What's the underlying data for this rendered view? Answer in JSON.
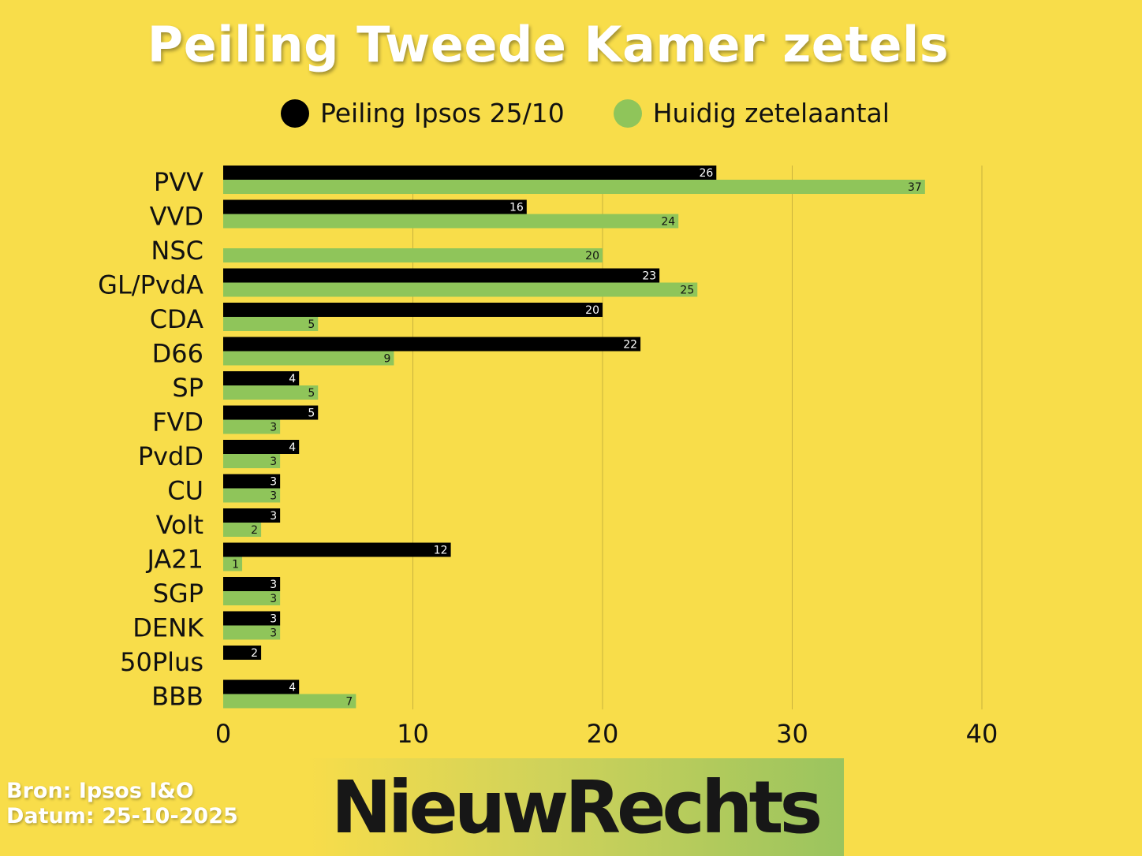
{
  "title": "Peiling Tweede Kamer zetels",
  "legend": {
    "series_a": "Peiling Ipsos 25/10",
    "series_b": "Huidig zetelaantal"
  },
  "colors": {
    "background": "#F8DD4A",
    "series_a": "#000000",
    "series_b": "#8FC55A",
    "grid": "#C9B23C"
  },
  "source": {
    "line1": "Bron: Ipsos I&O",
    "line2": "Datum: 25-10-2025"
  },
  "logo": {
    "text": "NieuwRechts"
  },
  "chart_data": {
    "type": "bar",
    "orientation": "horizontal",
    "categories": [
      "PVV",
      "VVD",
      "NSC",
      "GL/PvdA",
      "CDA",
      "D66",
      "SP",
      "FVD",
      "PvdD",
      "CU",
      "Volt",
      "JA21",
      "SGP",
      "DENK",
      "50Plus",
      "BBB"
    ],
    "series": [
      {
        "name": "Peiling Ipsos 25/10",
        "values": [
          26,
          16,
          null,
          23,
          20,
          22,
          4,
          5,
          4,
          3,
          3,
          12,
          3,
          3,
          2,
          4
        ]
      },
      {
        "name": "Huidig zetelaantal",
        "values": [
          37,
          24,
          20,
          25,
          5,
          9,
          5,
          3,
          3,
          3,
          2,
          1,
          3,
          3,
          null,
          7
        ]
      }
    ],
    "xlim": [
      0,
      40
    ],
    "xticks": [
      0,
      10,
      20,
      30,
      40
    ],
    "grid": true,
    "legend_position": "top"
  }
}
